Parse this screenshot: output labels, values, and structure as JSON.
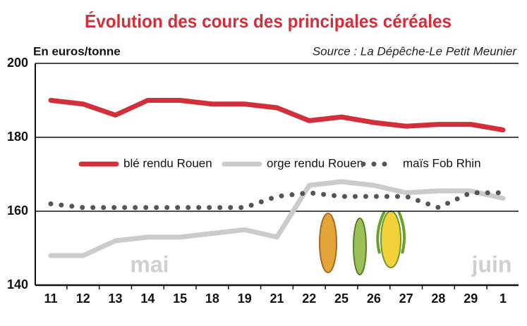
{
  "chart_data": {
    "type": "line",
    "title": "Évolution des cours des principales céréales",
    "y_label": "En euros/tonne",
    "source": "Source : La Dépêche-Le Petit Meunier",
    "annotations": [
      "mai",
      "juin"
    ],
    "categories": [
      "11",
      "12",
      "13",
      "14",
      "15",
      "18",
      "19",
      "21",
      "22",
      "25",
      "26",
      "27",
      "28",
      "29",
      "1"
    ],
    "series": [
      {
        "name": "blé rendu Rouen",
        "color": "#d12f3a",
        "style": "solid",
        "values": [
          190,
          189,
          186,
          190,
          190,
          189,
          189,
          188,
          184.5,
          185.5,
          184,
          183,
          183.5,
          183.5,
          182
        ]
      },
      {
        "name": "orge rendu Rouen",
        "color": "#cbcbcb",
        "style": "solid",
        "values": [
          148,
          148,
          152,
          153,
          153,
          154,
          155,
          153,
          167,
          168,
          167,
          165,
          165.5,
          165.5,
          163.5
        ]
      },
      {
        "name": "maïs Fob Rhin",
        "color": "#555555",
        "style": "dotted",
        "values": [
          162,
          161,
          161,
          161,
          161,
          161,
          161,
          164,
          165,
          164,
          164,
          164,
          161,
          165,
          165
        ]
      }
    ],
    "ylim": [
      140,
      200
    ],
    "yticks": [
      140,
      160,
      180,
      200
    ],
    "grid": true
  }
}
